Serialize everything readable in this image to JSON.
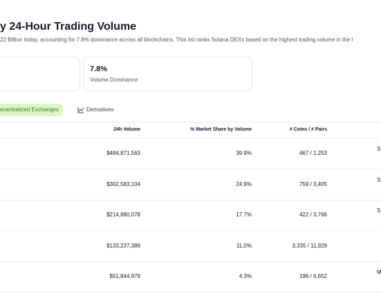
{
  "header": {
    "title": "y 24-Hour Trading Volume",
    "subtitle": "22 Billion today, accounting for 7.8% dominance across all blockchains. This list ranks Solana DEXs based on the highest trading volume in the l"
  },
  "stat_card": {
    "value": "7.8%",
    "label": "Volume Dominance"
  },
  "tabs": [
    "ecentralized Exchanges",
    "Derivatives"
  ],
  "table": {
    "headers": [
      "24h Volume",
      "% Market Share by Volume",
      "# Coins / # Pairs"
    ],
    "rows": [
      [
        "$484,871,563",
        "39.9%",
        "467 / 1,253"
      ],
      [
        "$302,583,104",
        "24.9%",
        "759 / 3,405"
      ],
      [
        "$214,880,078",
        "17.7%",
        "422 / 3,766"
      ],
      [
        "$133,237,389",
        "11.0%",
        "3,335 / 11,929"
      ],
      [
        "$51,844,979",
        "4.3%",
        "196 / 6,652"
      ]
    ],
    "edge_labels": [
      "S",
      "S",
      "S",
      null,
      "M"
    ]
  }
}
